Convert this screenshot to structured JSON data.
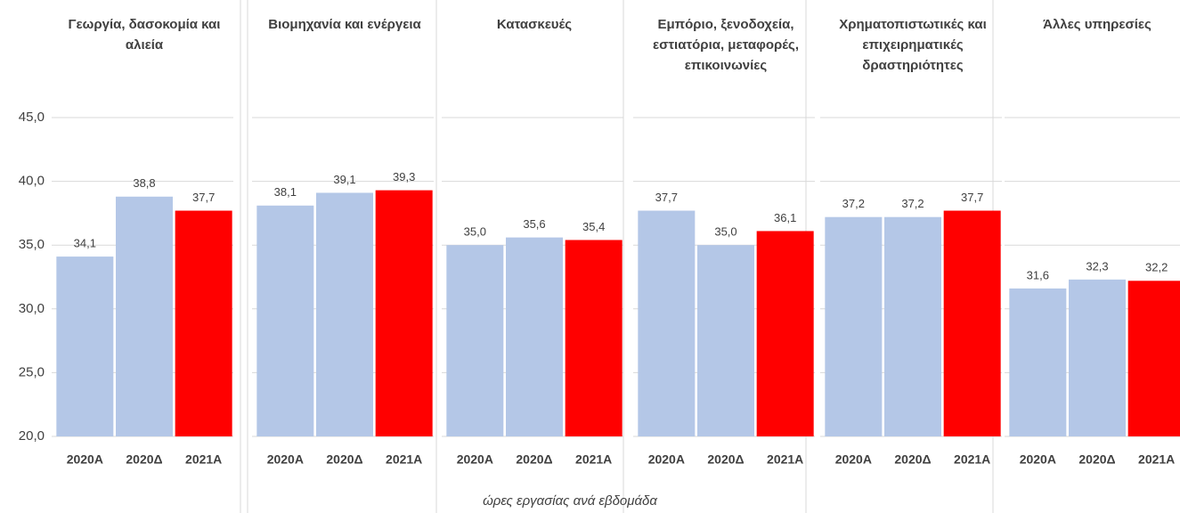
{
  "chart_data": [
    {
      "type": "bar",
      "title": "Γεωργία, δασοκομία και αλιεία",
      "categories": [
        "2020Α",
        "2020Δ",
        "2021Α"
      ],
      "values": [
        34.1,
        38.8,
        37.7
      ],
      "value_labels": [
        "34,1",
        "38,8",
        "37,7"
      ],
      "colors": [
        "#b4c7e7",
        "#b4c7e7",
        "#ff0000"
      ],
      "ylim": [
        20,
        45
      ],
      "yticks": [
        {
          "value": 20,
          "label": "20,0"
        },
        {
          "value": 25,
          "label": "25,0"
        },
        {
          "value": 30,
          "label": "30,0"
        },
        {
          "value": 35,
          "label": "35,0"
        },
        {
          "value": 40,
          "label": "40,0"
        },
        {
          "value": 45,
          "label": "45,0"
        }
      ],
      "grid": true
    },
    {
      "type": "bar",
      "title": "Βιομηχανία και ενέργεια",
      "categories": [
        "2020Α",
        "2020Δ",
        "2021Α"
      ],
      "values": [
        38.1,
        39.1,
        39.3
      ],
      "value_labels": [
        "38,1",
        "39,1",
        "39,3"
      ],
      "colors": [
        "#b4c7e7",
        "#b4c7e7",
        "#ff0000"
      ],
      "ylim": [
        20,
        45
      ],
      "yticks": [
        20,
        25,
        30,
        35,
        40,
        45
      ],
      "grid": true
    },
    {
      "type": "bar",
      "title": "Κατασκευές",
      "categories": [
        "2020Α",
        "2020Δ",
        "2021Α"
      ],
      "values": [
        35.0,
        35.6,
        35.4
      ],
      "value_labels": [
        "35,0",
        "35,6",
        "35,4"
      ],
      "colors": [
        "#b4c7e7",
        "#b4c7e7",
        "#ff0000"
      ],
      "ylim": [
        20,
        45
      ],
      "yticks": [
        20,
        25,
        30,
        35,
        40,
        45
      ],
      "grid": true
    },
    {
      "type": "bar",
      "title": "Εμπόριο, ξενοδοχεία, εστιατόρια, μεταφορές, επικοινωνίες",
      "categories": [
        "2020Α",
        "2020Δ",
        "2021Α"
      ],
      "values": [
        37.7,
        35.0,
        36.1
      ],
      "value_labels": [
        "37,7",
        "35,0",
        "36,1"
      ],
      "colors": [
        "#b4c7e7",
        "#b4c7e7",
        "#ff0000"
      ],
      "ylim": [
        20,
        45
      ],
      "yticks": [
        20,
        25,
        30,
        35,
        40,
        45
      ],
      "grid": true
    },
    {
      "type": "bar",
      "title": "Χρηματοπιστωτικές και επιχειρηματικές δραστηριότητες",
      "categories": [
        "2020Α",
        "2020Δ",
        "2021Α"
      ],
      "values": [
        37.2,
        37.2,
        37.7
      ],
      "value_labels": [
        "37,2",
        "37,2",
        "37,7"
      ],
      "colors": [
        "#b4c7e7",
        "#b4c7e7",
        "#ff0000"
      ],
      "ylim": [
        20,
        45
      ],
      "yticks": [
        20,
        25,
        30,
        35,
        40,
        45
      ],
      "grid": true
    },
    {
      "type": "bar",
      "title": "Άλλες υπηρεσίες",
      "categories": [
        "2020Α",
        "2020Δ",
        "2021Α"
      ],
      "values": [
        31.6,
        32.3,
        32.2
      ],
      "value_labels": [
        "31,6",
        "32,3",
        "32,2"
      ],
      "colors": [
        "#b4c7e7",
        "#b4c7e7",
        "#ff0000"
      ],
      "ylim": [
        20,
        45
      ],
      "yticks": [
        20,
        25,
        30,
        35,
        40,
        45
      ],
      "grid": true
    }
  ],
  "caption": "ώρες εργασίας ανά εβδομάδα"
}
